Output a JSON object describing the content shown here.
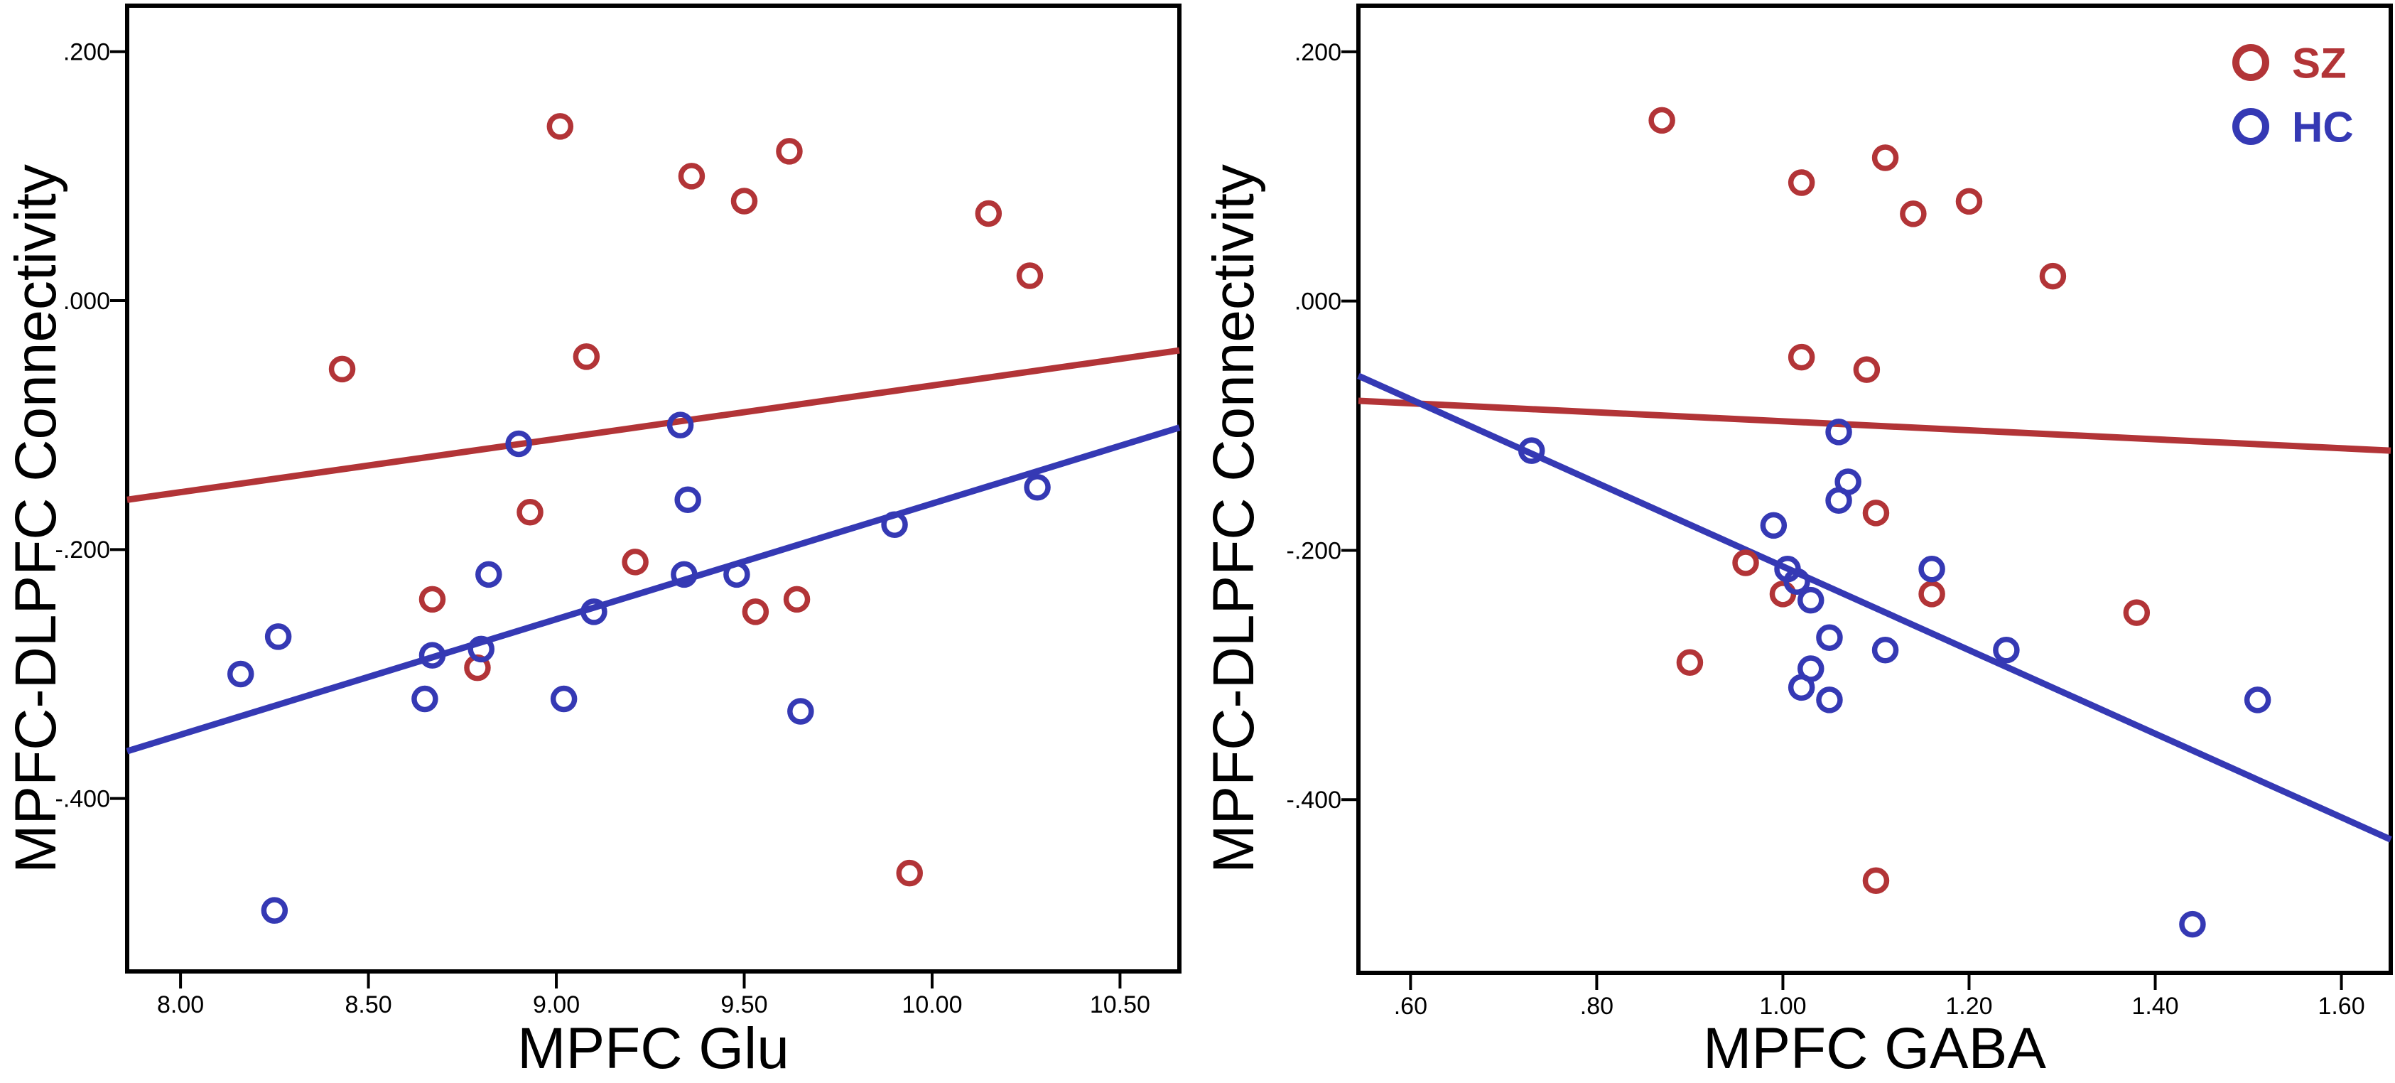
{
  "figure": {
    "background": "#ffffff",
    "description": "Two-panel scatter plot of MPFC-DLPFC connectivity vs MPFC metabolite levels for SZ and HC groups with linear fit lines"
  },
  "colors": {
    "sz": "#b23437",
    "hc": "#3539b4",
    "axis": "#000000",
    "background": "#ffffff"
  },
  "legend": {
    "position": "top-right",
    "items": [
      {
        "label": "SZ",
        "color_key": "sz"
      },
      {
        "label": "HC",
        "color_key": "hc"
      }
    ]
  },
  "chart_data": [
    {
      "type": "scatter",
      "title": "",
      "xlabel": "MPFC Glu",
      "ylabel": "MPFC-DLPFC Connectivity",
      "xlim": [
        7.858,
        10.658
      ],
      "ylim": [
        -0.539,
        0.237
      ],
      "grid": false,
      "show_legend": false,
      "xticks": {
        "values": [
          8.0,
          8.5,
          9.0,
          9.5,
          10.0,
          10.5
        ],
        "labels": [
          "8.00",
          "8.50",
          "9.00",
          "9.50",
          "10.00",
          "10.50"
        ]
      },
      "yticks": {
        "values": [
          0.2,
          0.0,
          -0.2,
          -0.4
        ],
        "labels": [
          ".200",
          ".000",
          "-.200",
          "-.400"
        ]
      },
      "series": [
        {
          "name": "SZ",
          "color_key": "sz",
          "points": [
            [
              9.01,
              0.14
            ],
            [
              9.36,
              0.1
            ],
            [
              9.5,
              0.08
            ],
            [
              9.62,
              0.12
            ],
            [
              10.15,
              0.07
            ],
            [
              10.26,
              0.02
            ],
            [
              8.43,
              -0.055
            ],
            [
              9.08,
              -0.045
            ],
            [
              8.93,
              -0.17
            ],
            [
              9.21,
              -0.21
            ],
            [
              8.67,
              -0.24
            ],
            [
              9.53,
              -0.25
            ],
            [
              9.64,
              -0.24
            ],
            [
              8.79,
              -0.295
            ],
            [
              9.94,
              -0.46
            ]
          ]
        },
        {
          "name": "HC",
          "color_key": "hc",
          "points": [
            [
              9.33,
              -0.1
            ],
            [
              8.9,
              -0.115
            ],
            [
              9.35,
              -0.16
            ],
            [
              9.9,
              -0.18
            ],
            [
              10.28,
              -0.15
            ],
            [
              8.82,
              -0.22
            ],
            [
              9.34,
              -0.22
            ],
            [
              9.48,
              -0.22
            ],
            [
              9.1,
              -0.25
            ],
            [
              8.26,
              -0.27
            ],
            [
              8.67,
              -0.285
            ],
            [
              8.8,
              -0.28
            ],
            [
              8.16,
              -0.3
            ],
            [
              8.65,
              -0.32
            ],
            [
              9.02,
              -0.32
            ],
            [
              9.65,
              -0.33
            ],
            [
              8.25,
              -0.49
            ]
          ]
        }
      ],
      "fit_lines": [
        {
          "series": "SZ",
          "color_key": "sz",
          "x1": 7.858,
          "y1": -0.16,
          "x2": 10.658,
          "y2": -0.04
        },
        {
          "series": "HC",
          "color_key": "hc",
          "x1": 7.858,
          "y1": -0.362,
          "x2": 10.658,
          "y2": -0.102
        }
      ]
    },
    {
      "type": "scatter",
      "title": "",
      "xlabel": "MPFC GABA",
      "ylabel": "MPFC-DLPFC Connectivity",
      "xlim": [
        0.544,
        1.653
      ],
      "ylim": [
        -0.539,
        0.237
      ],
      "grid": false,
      "show_legend": true,
      "xticks": {
        "values": [
          0.6,
          0.8,
          1.0,
          1.2,
          1.4,
          1.6
        ],
        "labels": [
          ".60",
          ".80",
          "1.00",
          "1.20",
          "1.40",
          "1.60"
        ]
      },
      "yticks": {
        "values": [
          0.2,
          0.0,
          -0.2,
          -0.4
        ],
        "labels": [
          ".200",
          ".000",
          "-.200",
          "-.400"
        ]
      },
      "series": [
        {
          "name": "SZ",
          "color_key": "sz",
          "points": [
            [
              0.87,
              0.145
            ],
            [
              1.02,
              0.095
            ],
            [
              1.11,
              0.115
            ],
            [
              1.14,
              0.07
            ],
            [
              1.2,
              0.08
            ],
            [
              1.29,
              0.02
            ],
            [
              1.02,
              -0.045
            ],
            [
              1.09,
              -0.055
            ],
            [
              1.1,
              -0.17
            ],
            [
              0.96,
              -0.21
            ],
            [
              1.0,
              -0.235
            ],
            [
              1.16,
              -0.235
            ],
            [
              1.38,
              -0.25
            ],
            [
              0.9,
              -0.29
            ],
            [
              1.1,
              -0.465
            ]
          ]
        },
        {
          "name": "HC",
          "color_key": "hc",
          "points": [
            [
              0.73,
              -0.12
            ],
            [
              1.06,
              -0.105
            ],
            [
              1.07,
              -0.145
            ],
            [
              1.06,
              -0.16
            ],
            [
              0.99,
              -0.18
            ],
            [
              1.005,
              -0.215
            ],
            [
              1.015,
              -0.225
            ],
            [
              1.16,
              -0.215
            ],
            [
              1.03,
              -0.24
            ],
            [
              1.05,
              -0.27
            ],
            [
              1.11,
              -0.28
            ],
            [
              1.24,
              -0.28
            ],
            [
              1.03,
              -0.295
            ],
            [
              1.02,
              -0.31
            ],
            [
              1.05,
              -0.32
            ],
            [
              1.51,
              -0.32
            ],
            [
              1.44,
              -0.5
            ]
          ]
        }
      ],
      "fit_lines": [
        {
          "series": "SZ",
          "color_key": "sz",
          "x1": 0.544,
          "y1": -0.08,
          "x2": 1.653,
          "y2": -0.12
        },
        {
          "series": "HC",
          "color_key": "hc",
          "x1": 0.544,
          "y1": -0.06,
          "x2": 1.653,
          "y2": -0.432
        }
      ]
    }
  ]
}
